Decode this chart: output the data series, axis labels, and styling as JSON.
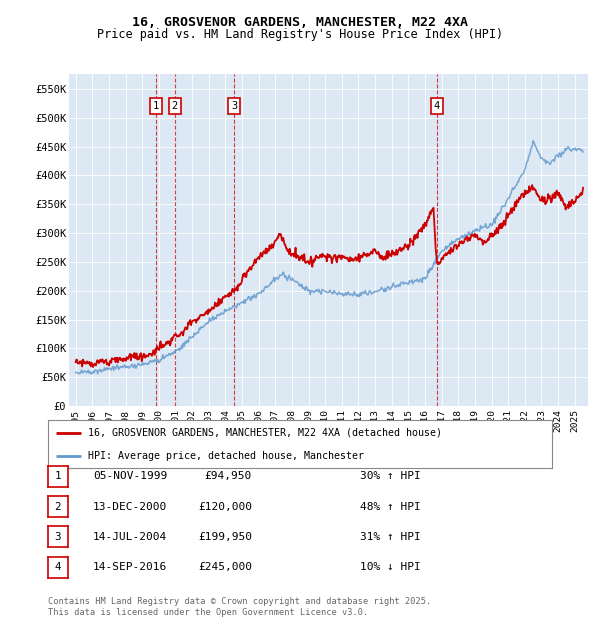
{
  "title1": "16, GROSVENOR GARDENS, MANCHESTER, M22 4XA",
  "title2": "Price paid vs. HM Land Registry's House Price Index (HPI)",
  "ylabel_ticks": [
    "£0",
    "£50K",
    "£100K",
    "£150K",
    "£200K",
    "£250K",
    "£300K",
    "£350K",
    "£400K",
    "£450K",
    "£500K",
    "£550K"
  ],
  "ytick_vals": [
    0,
    50000,
    100000,
    150000,
    200000,
    250000,
    300000,
    350000,
    400000,
    450000,
    500000,
    550000
  ],
  "ylim": [
    0,
    575000
  ],
  "background_color": "#dce9f5",
  "red_color": "#cc0000",
  "blue_color": "#6699cc",
  "legend_label_red": "16, GROSVENOR GARDENS, MANCHESTER, M22 4XA (detached house)",
  "legend_label_blue": "HPI: Average price, detached house, Manchester",
  "transactions": [
    {
      "num": 1,
      "date": "05-NOV-1999",
      "price": 94950,
      "pct": "30%",
      "dir": "↑",
      "x_year": 1999.85
    },
    {
      "num": 2,
      "date": "13-DEC-2000",
      "price": 120000,
      "pct": "48%",
      "dir": "↑",
      "x_year": 2000.95
    },
    {
      "num": 3,
      "date": "14-JUL-2004",
      "price": 199950,
      "pct": "31%",
      "dir": "↑",
      "x_year": 2004.54
    },
    {
      "num": 4,
      "date": "14-SEP-2016",
      "price": 245000,
      "pct": "10%",
      "dir": "↓",
      "x_year": 2016.71
    }
  ],
  "footer": "Contains HM Land Registry data © Crown copyright and database right 2025.\nThis data is licensed under the Open Government Licence v3.0.",
  "xlim_start": 1994.6,
  "xlim_end": 2025.8
}
